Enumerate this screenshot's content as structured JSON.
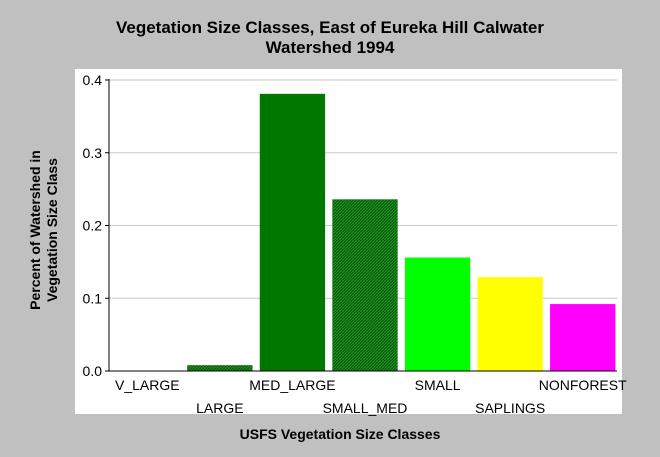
{
  "chart_data": {
    "type": "bar",
    "title_line1": "Vegetation Size Classes, East of Eureka Hill Calwater",
    "title_line2": "Watershed 1994",
    "xlabel": "USFS Vegetation Size Classes",
    "ylabel_line1": "Percent of Watershed in",
    "ylabel_line2": "Vegetation Size Class",
    "categories": [
      "V_LARGE",
      "LARGE",
      "MED_LARGE",
      "SMALL_MED",
      "SMALL",
      "SAPLINGS",
      "NONFOREST"
    ],
    "values": [
      0.0,
      0.008,
      0.381,
      0.236,
      0.156,
      0.129,
      0.092
    ],
    "colors": [
      "#006400",
      "#006400",
      "#007800",
      "#006400",
      "#00ff00",
      "#ffff00",
      "#ff00ff"
    ],
    "hatched": [
      false,
      true,
      false,
      true,
      false,
      false,
      false
    ],
    "ylim": [
      0,
      0.4
    ],
    "yticks": [
      "0.0",
      "0.1",
      "0.2",
      "0.3",
      "0.4"
    ],
    "grid": true,
    "legend": "none"
  }
}
